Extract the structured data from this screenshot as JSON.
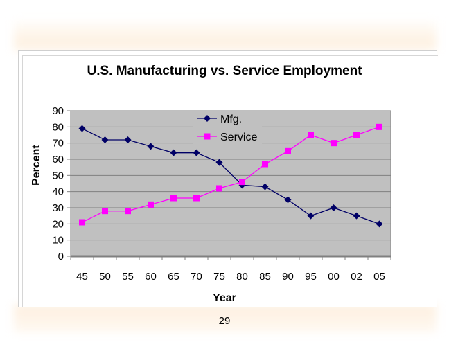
{
  "page": {
    "number": "29"
  },
  "colors": {
    "mfg": "#000066",
    "service": "#ff00ff",
    "plot_bg": "#c0c0c0",
    "grid": "#808080"
  },
  "chart_data": {
    "type": "line",
    "title": "U.S. Manufacturing vs. Service Employment",
    "xlabel": "Year",
    "ylabel": "Percent",
    "categories": [
      "45",
      "50",
      "55",
      "60",
      "65",
      "70",
      "75",
      "80",
      "85",
      "90",
      "95",
      "00",
      "02",
      "05"
    ],
    "ylim": [
      0,
      90
    ],
    "yticks": [
      0,
      10,
      20,
      30,
      40,
      50,
      60,
      70,
      80,
      90
    ],
    "grid": true,
    "legend": "top-center",
    "series": [
      {
        "name": "Mfg.",
        "marker": "diamond",
        "values": [
          79,
          72,
          72,
          68,
          64,
          64,
          58,
          44,
          43,
          35,
          25,
          30,
          25,
          20
        ]
      },
      {
        "name": "Service",
        "marker": "square",
        "values": [
          21,
          28,
          28,
          32,
          36,
          36,
          42,
          46,
          57,
          65,
          75,
          70,
          75,
          80
        ]
      }
    ]
  }
}
